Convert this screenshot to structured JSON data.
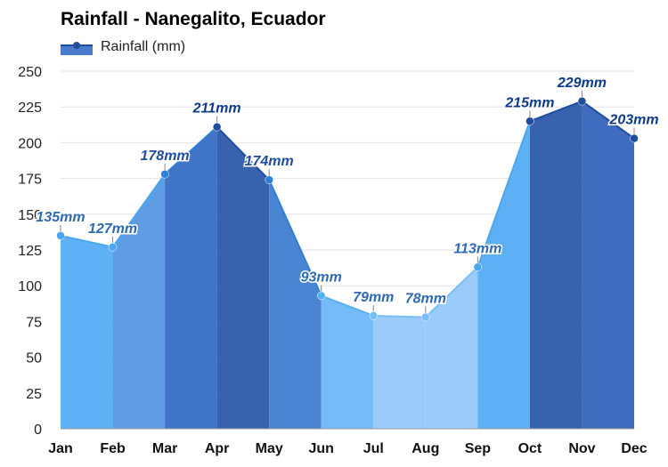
{
  "chart_data": {
    "type": "area",
    "title": "Rainfall - Nanegalito, Ecuador",
    "categories": [
      "Jan",
      "Feb",
      "Mar",
      "Apr",
      "May",
      "Jun",
      "Jul",
      "Aug",
      "Sep",
      "Oct",
      "Nov",
      "Dec"
    ],
    "series": [
      {
        "name": "Rainfall (mm)",
        "values": [
          135,
          127,
          178,
          211,
          174,
          93,
          79,
          78,
          113,
          215,
          229,
          203
        ],
        "data_labels": [
          "135mm",
          "127mm",
          "178mm",
          "211mm",
          "174mm",
          "93mm",
          "79mm",
          "78mm",
          "113mm",
          "215mm",
          "229mm",
          "203mm"
        ]
      }
    ],
    "ylim": [
      0,
      250
    ],
    "yticks": [
      0,
      25,
      50,
      75,
      100,
      125,
      150,
      175,
      200,
      225,
      250
    ],
    "grid": true,
    "legend": "top-left",
    "colors": {
      "band_colors": [
        "#5fb1f5",
        "#5e9de6",
        "#3f74c6",
        "#3862ad",
        "#4a85d4",
        "#75bbf8",
        "#9bcbfb",
        "#9bcbfb",
        "#5eb0f4",
        "#3862ad",
        "#3f6cbf",
        "#5e94dc"
      ],
      "point_colors": [
        "#4aa6f0",
        "#4aa6f0",
        "#2f7fd6",
        "#1f4e9e",
        "#2f7fd6",
        "#57b0f5",
        "#79bff7",
        "#79bff7",
        "#4aa6f0",
        "#1f4e9e",
        "#1f4e9e",
        "#1f4e9e"
      ],
      "label_colors": [
        "#2f6ab0",
        "#2f6ab0",
        "#1f4e9e",
        "#0e3b8a",
        "#1f4e9e",
        "#2f6ab0",
        "#2f6ab0",
        "#2f6ab0",
        "#2f6ab0",
        "#0e3b8a",
        "#0e3b8a",
        "#0e3b8a"
      ]
    }
  }
}
